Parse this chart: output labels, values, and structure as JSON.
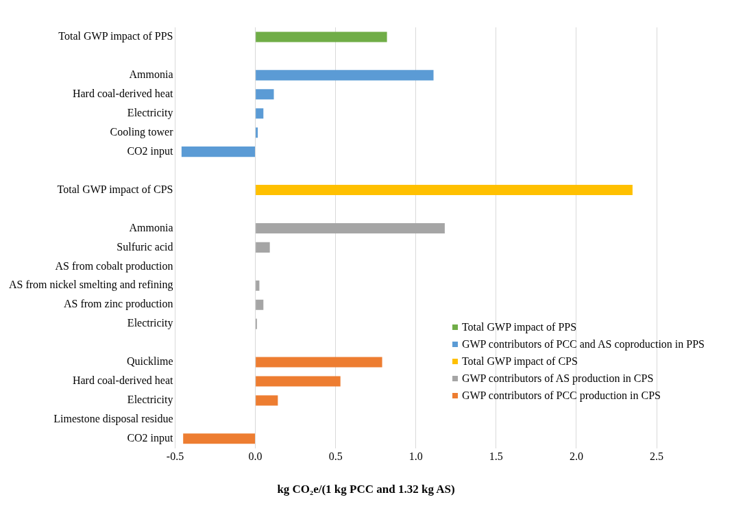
{
  "chart_data": {
    "type": "bar",
    "orientation": "horizontal",
    "xlabel": "kg CO₂e/(1 kg PCC and 1.32 kg AS)",
    "categories": [
      "Total GWP impact of PPS",
      null,
      "Ammonia",
      "Hard coal-derived heat",
      "Electricity",
      "Cooling tower",
      "CO2 input",
      null,
      "Total GWP impact of CPS",
      null,
      "Ammonia",
      "Sulfuric acid",
      "AS from cobalt production",
      "AS from nickel smelting and refining",
      "AS from zinc production",
      "Electricity",
      null,
      "Quicklime",
      "Hard coal-derived heat",
      "Electricity",
      "Limestone disposal residue",
      "CO2 input"
    ],
    "series": [
      {
        "name": "Total GWP impact of PPS",
        "color": "#70ad47",
        "values": [
          0.82,
          null,
          null,
          null,
          null,
          null,
          null,
          null,
          null,
          null,
          null,
          null,
          null,
          null,
          null,
          null,
          null,
          null,
          null,
          null,
          null,
          null
        ]
      },
      {
        "name": "GWP contributors of PCC and AS coproduction in PPS",
        "color": "#5b9bd5",
        "values": [
          null,
          null,
          1.11,
          0.115,
          0.05,
          0.015,
          -0.46,
          null,
          null,
          null,
          null,
          null,
          null,
          null,
          null,
          null,
          null,
          null,
          null,
          null,
          null,
          null
        ]
      },
      {
        "name": "Total GWP impact of CPS",
        "color": "#ffc000",
        "values": [
          null,
          null,
          null,
          null,
          null,
          null,
          null,
          null,
          2.35,
          null,
          null,
          null,
          null,
          null,
          null,
          null,
          null,
          null,
          null,
          null,
          null,
          null
        ]
      },
      {
        "name": "GWP contributors of AS production in CPS",
        "color": "#a5a5a5",
        "values": [
          null,
          null,
          null,
          null,
          null,
          null,
          null,
          null,
          null,
          null,
          1.18,
          0.09,
          0,
          0.025,
          0.05,
          0.01,
          null,
          null,
          null,
          null,
          null,
          null
        ]
      },
      {
        "name": "GWP contributors of PCC production in CPS",
        "color": "#ed7d31",
        "values": [
          null,
          null,
          null,
          null,
          null,
          null,
          null,
          null,
          null,
          null,
          null,
          null,
          null,
          null,
          null,
          null,
          null,
          0.79,
          0.53,
          0.14,
          0,
          -0.45
        ]
      }
    ],
    "xlim": [
      -0.5,
      2.5
    ],
    "xticks": [
      {
        "value": -0.5,
        "label": "-0.5"
      },
      {
        "value": 0,
        "label": "0.0"
      },
      {
        "value": 0.5,
        "label": "0.5"
      },
      {
        "value": 1,
        "label": "1.0"
      },
      {
        "value": 1.5,
        "label": "1.5"
      },
      {
        "value": 2,
        "label": "2.0"
      },
      {
        "value": 2.5,
        "label": "2.5"
      }
    ],
    "grid": "x",
    "legend": "bottom right"
  }
}
